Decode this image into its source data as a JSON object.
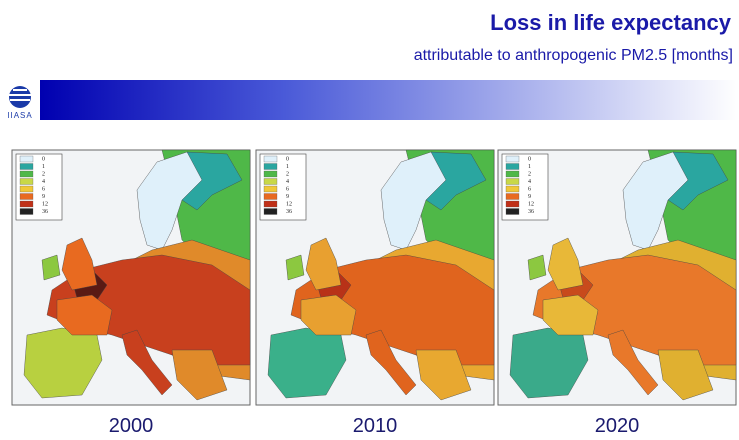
{
  "header": {
    "title": "Loss in life expectancy",
    "subtitle": "attributable to anthropogenic PM2.5 [months]",
    "logo": "IIASA"
  },
  "maps": [
    {
      "year": "2000",
      "legend": [
        "0",
        "1",
        "2",
        "4",
        "6",
        "9",
        "12",
        "36"
      ]
    },
    {
      "year": "2010",
      "legend": [
        "0",
        "1",
        "2",
        "4",
        "6",
        "9",
        "12",
        "36"
      ]
    },
    {
      "year": "2020",
      "legend": [
        "0",
        "1",
        "2",
        "4",
        "6",
        "9",
        "12",
        "36"
      ]
    }
  ]
}
